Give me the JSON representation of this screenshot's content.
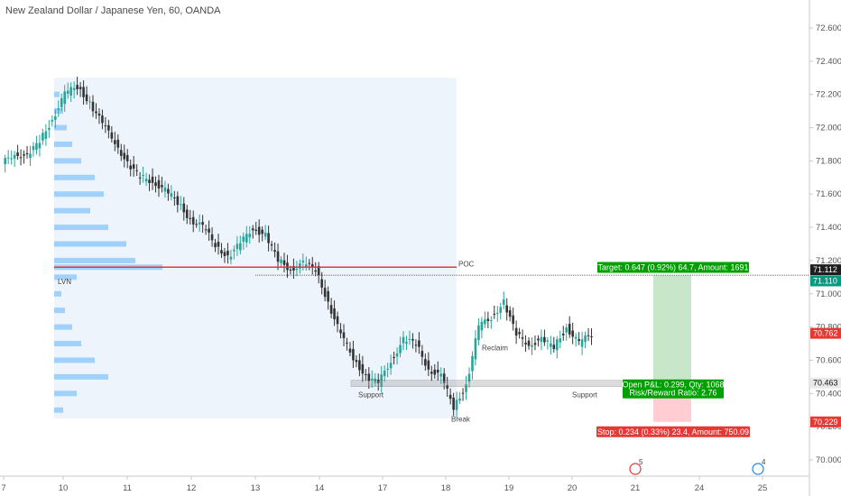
{
  "chart_data": {
    "type": "candlestick",
    "title": "New Zealand Dollar / Japanese Yen, 60, OANDA",
    "y_ticks": [
      "72.600",
      "72.400",
      "72.200",
      "72.000",
      "71.800",
      "71.600",
      "71.400",
      "71.200",
      "71.000",
      "70.800",
      "70.600",
      "70.400",
      "70.200",
      "70.000"
    ],
    "y_tick_values": [
      72.6,
      72.4,
      72.2,
      72.0,
      71.8,
      71.6,
      71.4,
      71.2,
      71.0,
      70.8,
      70.6,
      70.4,
      70.2,
      70.0
    ],
    "ylim": [
      69.87,
      72.8
    ],
    "x_ticks": [
      "7",
      "10",
      "11",
      "12",
      "13",
      "14",
      "17",
      "18",
      "19",
      "20",
      "21",
      "24",
      "25"
    ],
    "price_series": [
      {
        "x": 0,
        "y": 71.78
      },
      {
        "x": 1,
        "y": 71.85
      },
      {
        "x": 2,
        "y": 71.82
      },
      {
        "x": 3,
        "y": 71.92
      },
      {
        "x": 4,
        "y": 72.05
      },
      {
        "x": 5,
        "y": 72.2
      },
      {
        "x": 6,
        "y": 72.25
      },
      {
        "x": 7,
        "y": 72.15
      },
      {
        "x": 8,
        "y": 72.02
      },
      {
        "x": 9,
        "y": 71.92
      },
      {
        "x": 10,
        "y": 71.78
      },
      {
        "x": 11,
        "y": 71.7
      },
      {
        "x": 12,
        "y": 71.68
      },
      {
        "x": 13,
        "y": 71.62
      },
      {
        "x": 14,
        "y": 71.55
      },
      {
        "x": 15,
        "y": 71.45
      },
      {
        "x": 16,
        "y": 71.4
      },
      {
        "x": 17,
        "y": 71.3
      },
      {
        "x": 18,
        "y": 71.22
      },
      {
        "x": 19,
        "y": 71.3
      },
      {
        "x": 20,
        "y": 71.4
      },
      {
        "x": 21,
        "y": 71.35
      },
      {
        "x": 22,
        "y": 71.2
      },
      {
        "x": 23,
        "y": 71.15
      },
      {
        "x": 24,
        "y": 71.18
      },
      {
        "x": 25,
        "y": 71.15
      },
      {
        "x": 26,
        "y": 70.95
      },
      {
        "x": 27,
        "y": 70.75
      },
      {
        "x": 28,
        "y": 70.62
      },
      {
        "x": 29,
        "y": 70.5
      },
      {
        "x": 30,
        "y": 70.46
      },
      {
        "x": 31,
        "y": 70.6
      },
      {
        "x": 32,
        "y": 70.72
      },
      {
        "x": 33,
        "y": 70.7
      },
      {
        "x": 34,
        "y": 70.55
      },
      {
        "x": 35,
        "y": 70.5
      },
      {
        "x": 36,
        "y": 70.32
      },
      {
        "x": 37,
        "y": 70.45
      },
      {
        "x": 38,
        "y": 70.8
      },
      {
        "x": 39,
        "y": 70.86
      },
      {
        "x": 40,
        "y": 70.95
      },
      {
        "x": 41,
        "y": 70.75
      },
      {
        "x": 42,
        "y": 70.7
      },
      {
        "x": 43,
        "y": 70.72
      },
      {
        "x": 44,
        "y": 70.68
      },
      {
        "x": 45,
        "y": 70.8
      },
      {
        "x": 46,
        "y": 70.7
      },
      {
        "x": 47,
        "y": 70.76
      }
    ],
    "volume_profile": {
      "poc_label": "POC",
      "lvn_label": "LVN",
      "poc_price": 71.16,
      "lvn_price": 71.07,
      "profile": [
        {
          "price": 72.2,
          "volume": 6
        },
        {
          "price": 72.1,
          "volume": 10
        },
        {
          "price": 72.0,
          "volume": 14
        },
        {
          "price": 71.9,
          "volume": 20
        },
        {
          "price": 71.8,
          "volume": 30
        },
        {
          "price": 71.7,
          "volume": 45
        },
        {
          "price": 71.6,
          "volume": 55
        },
        {
          "price": 71.5,
          "volume": 40
        },
        {
          "price": 71.4,
          "volume": 60
        },
        {
          "price": 71.3,
          "volume": 80
        },
        {
          "price": 71.2,
          "volume": 90
        },
        {
          "price": 71.16,
          "volume": 120
        },
        {
          "price": 71.1,
          "volume": 25
        },
        {
          "price": 71.0,
          "volume": 8
        },
        {
          "price": 70.9,
          "volume": 12
        },
        {
          "price": 70.8,
          "volume": 20
        },
        {
          "price": 70.7,
          "volume": 30
        },
        {
          "price": 70.6,
          "volume": 45
        },
        {
          "price": 70.5,
          "volume": 60
        },
        {
          "price": 70.4,
          "volume": 25
        },
        {
          "price": 70.3,
          "volume": 10
        }
      ]
    },
    "annotations": {
      "support_left": "Support",
      "support_right": "Support",
      "break": "Break",
      "reclaim": "Reclaim"
    },
    "support_level": 70.463,
    "position": {
      "entry": 70.463,
      "target": 71.11,
      "stop": 70.229,
      "target_label": "Target: 0.647 (0.92%) 64.7, Amount: 1691",
      "pnl_label": "Open P&L: 0.299, Qty: 1068",
      "rr_label": "Risk/Reward Ratio: 2.76",
      "stop_label": "Stop: 0.234 (0.33%) 23.4, Amount: 750.09"
    },
    "price_tags": [
      {
        "value": 71.112,
        "label": "71.112",
        "bg": "#1e1e1e",
        "fg": "#ffffff"
      },
      {
        "value": 71.11,
        "label": "71.110",
        "bg": "#089981",
        "fg": "#ffffff"
      },
      {
        "value": 70.762,
        "label": "70.762",
        "bg": "#e53935",
        "fg": "#ffffff"
      },
      {
        "value": 70.463,
        "label": "70.463",
        "bg": "#e9e9e9",
        "fg": "#111111"
      },
      {
        "value": 70.229,
        "label": "70.229",
        "bg": "#e53935",
        "fg": "#ffffff"
      }
    ],
    "dotted_level": 71.112,
    "event_markers": [
      {
        "x_label": "21",
        "count": "5"
      },
      {
        "x_label": "25",
        "count": "4"
      }
    ],
    "colors": {
      "up": "#26a69a",
      "down": "#333333",
      "profile": "#90caf9",
      "profile_bg": "#eef4fc",
      "poc": "#e53935",
      "target_fill": "#c8e6c9",
      "stop_fill": "#ffcdd2",
      "target_box": "#00a000",
      "stop_box": "#e53935",
      "support_band": "#9e9e9e"
    }
  }
}
